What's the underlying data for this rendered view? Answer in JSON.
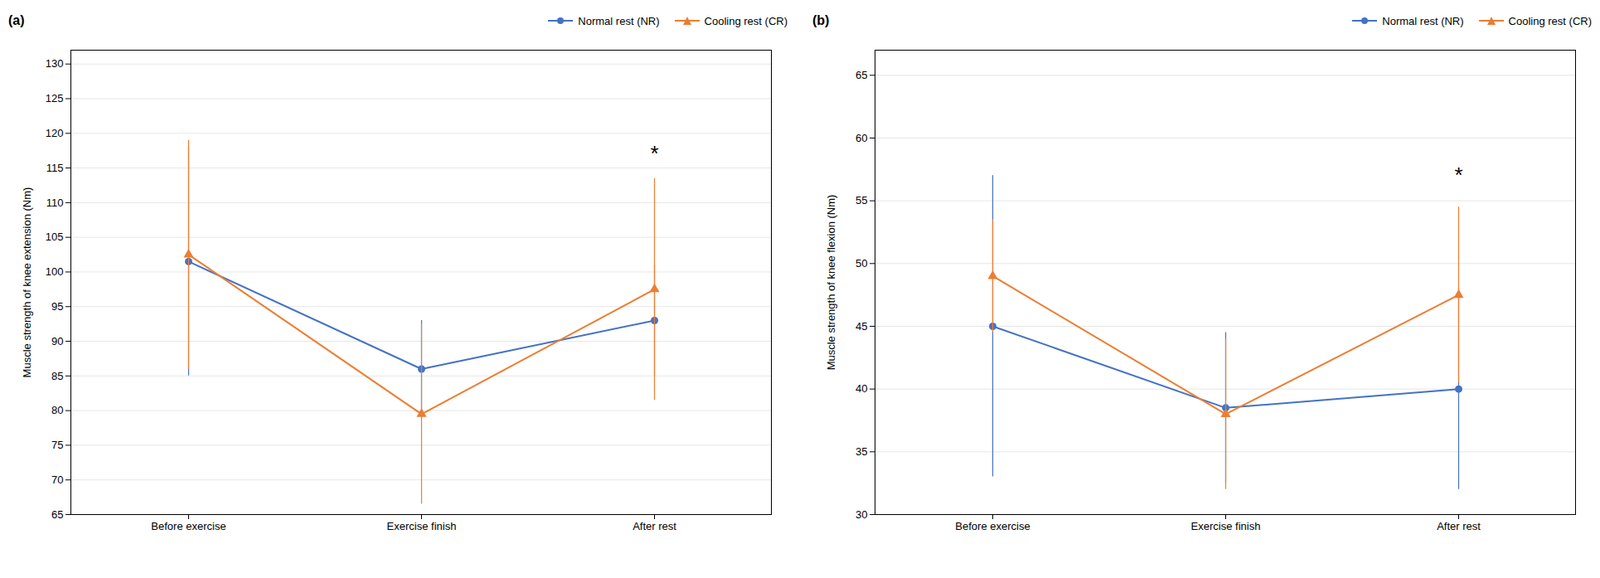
{
  "chart_data": [
    {
      "type": "line",
      "title": "(a)",
      "categories": [
        "Before exercise",
        "Exercise finish",
        "After rest"
      ],
      "y_label": "Muscle strength of knee extension (Nm)",
      "series": [
        {
          "name": "Normal rest (NR)",
          "color": "#4472C4",
          "marker": "circle",
          "values": [
            101.5,
            86.0,
            93.0
          ],
          "errors": [
            16.5,
            7.0,
            8.0
          ]
        },
        {
          "name": "Cooling rest (CR)",
          "color": "#ED7D31",
          "marker": "triangle",
          "values": [
            102.5,
            79.5,
            97.5
          ],
          "errors": [
            16.5,
            13.0,
            16.0
          ]
        }
      ],
      "ylim": [
        65,
        132
      ],
      "yticks": [
        65,
        70,
        75,
        80,
        85,
        90,
        95,
        100,
        105,
        110,
        115,
        120,
        125,
        130
      ],
      "grid": true,
      "legend": "upper right",
      "annotations": [
        {
          "text": "*",
          "x": "After rest",
          "y": 117
        }
      ]
    },
    {
      "type": "line",
      "title": "(b)",
      "categories": [
        "Before exercise",
        "Exercise finish",
        "After rest"
      ],
      "y_label": "Muscle strength of knee flexion (Nm)",
      "series": [
        {
          "name": "Normal rest (NR)",
          "color": "#4472C4",
          "marker": "circle",
          "values": [
            45.0,
            38.5,
            40.0
          ],
          "errors": [
            12.0,
            6.0,
            8.0
          ]
        },
        {
          "name": "Cooling rest (CR)",
          "color": "#ED7D31",
          "marker": "triangle",
          "values": [
            49.0,
            38.0,
            47.5
          ],
          "errors": [
            4.5,
            6.0,
            7.0
          ]
        }
      ],
      "ylim": [
        30,
        67
      ],
      "yticks": [
        30,
        35,
        40,
        45,
        50,
        55,
        60,
        65
      ],
      "grid": true,
      "legend": "upper right",
      "annotations": [
        {
          "text": "*",
          "x": "After rest",
          "y": 57
        }
      ]
    }
  ]
}
